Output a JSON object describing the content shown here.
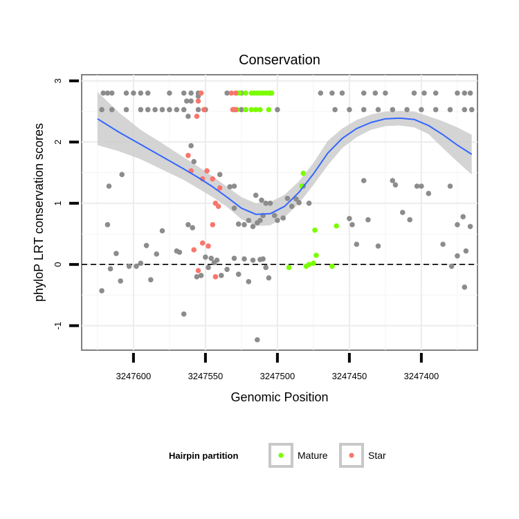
{
  "chart_data": {
    "type": "scatter",
    "title": "Conservation",
    "xlabel": "Genomic Position",
    "ylabel": "phyloP LRT conservation scores",
    "xlim": [
      3247636,
      3247361
    ],
    "ylim": [
      -1.4,
      3.1
    ],
    "x_reversed": true,
    "x_ticks": [
      3247600,
      3247550,
      3247500,
      3247450,
      3247400
    ],
    "x_tick_labels": [
      "3247600",
      "3247550",
      "3247500",
      "3247450",
      "3247400"
    ],
    "y_ticks": [
      -1,
      0,
      1,
      2,
      3
    ],
    "y_tick_labels": [
      "-1",
      "0",
      "1",
      "2",
      "3"
    ],
    "reference_line": {
      "y": 0,
      "style": "dashed"
    },
    "grid": true,
    "legend": {
      "title": "Hairpin partition",
      "position": "bottom",
      "entries": [
        {
          "label": "Mature",
          "color": "#7CFC00"
        },
        {
          "label": "Star",
          "color": "#F8766D"
        }
      ]
    },
    "colors": {
      "other": "#8c8c8c",
      "mature": "#7CFC00",
      "star": "#F8766D",
      "smooth": "#3366FF",
      "ribbon": "#cccccc"
    },
    "series": [
      {
        "name": "Other",
        "points": [
          [
            3247621,
            2.8
          ],
          [
            3247618,
            2.8
          ],
          [
            3247615,
            2.8
          ],
          [
            3247605,
            2.8
          ],
          [
            3247600,
            2.8
          ],
          [
            3247595,
            2.8
          ],
          [
            3247590,
            2.8
          ],
          [
            3247575,
            2.8
          ],
          [
            3247565,
            2.8
          ],
          [
            3247560,
            2.8
          ],
          [
            3247555,
            2.8
          ],
          [
            3247535,
            2.8
          ],
          [
            3247525,
            2.8
          ],
          [
            3247505,
            2.8
          ],
          [
            3247470,
            2.8
          ],
          [
            3247462,
            2.8
          ],
          [
            3247455,
            2.8
          ],
          [
            3247440,
            2.8
          ],
          [
            3247432,
            2.8
          ],
          [
            3247425,
            2.8
          ],
          [
            3247405,
            2.8
          ],
          [
            3247398,
            2.8
          ],
          [
            3247390,
            2.8
          ],
          [
            3247375,
            2.8
          ],
          [
            3247370,
            2.8
          ],
          [
            3247366,
            2.8
          ],
          [
            3247622,
            2.53
          ],
          [
            3247615,
            2.53
          ],
          [
            3247605,
            2.53
          ],
          [
            3247595,
            2.53
          ],
          [
            3247590,
            2.53
          ],
          [
            3247585,
            2.53
          ],
          [
            3247580,
            2.53
          ],
          [
            3247575,
            2.53
          ],
          [
            3247570,
            2.53
          ],
          [
            3247565,
            2.53
          ],
          [
            3247555,
            2.53
          ],
          [
            3247550,
            2.53
          ],
          [
            3247530,
            2.53
          ],
          [
            3247525,
            2.53
          ],
          [
            3247500,
            2.53
          ],
          [
            3247460,
            2.53
          ],
          [
            3247450,
            2.53
          ],
          [
            3247440,
            2.53
          ],
          [
            3247430,
            2.53
          ],
          [
            3247420,
            2.53
          ],
          [
            3247410,
            2.53
          ],
          [
            3247400,
            2.53
          ],
          [
            3247390,
            2.53
          ],
          [
            3247380,
            2.53
          ],
          [
            3247370,
            2.53
          ],
          [
            3247365,
            2.53
          ],
          [
            3247563,
            2.67
          ],
          [
            3247560,
            2.67
          ],
          [
            3247562,
            2.42
          ],
          [
            3247555,
            2.75
          ],
          [
            3247560,
            1.94
          ],
          [
            3247558,
            1.68
          ],
          [
            3247540,
            1.47
          ],
          [
            3247617,
            1.28
          ],
          [
            3247608,
            1.47
          ],
          [
            3247530,
            1.28
          ],
          [
            3247533,
            1.27
          ],
          [
            3247530,
            0.92
          ],
          [
            3247527,
            0.66
          ],
          [
            3247523,
            0.65
          ],
          [
            3247520,
            0.72
          ],
          [
            3247517,
            0.62
          ],
          [
            3247514,
            0.68
          ],
          [
            3247512,
            0.72
          ],
          [
            3247510,
            0.8
          ],
          [
            3247515,
            1.13
          ],
          [
            3247511,
            1.05
          ],
          [
            3247508,
            1.0
          ],
          [
            3247505,
            1.0
          ],
          [
            3247502,
            0.8
          ],
          [
            3247500,
            0.72
          ],
          [
            3247496,
            0.76
          ],
          [
            3247493,
            1.08
          ],
          [
            3247490,
            0.95
          ],
          [
            3247487,
            1.07
          ],
          [
            3247485,
            1.01
          ],
          [
            3247482,
            1.28
          ],
          [
            3247478,
            1.0
          ],
          [
            3247450,
            0.75
          ],
          [
            3247448,
            0.65
          ],
          [
            3247445,
            0.33
          ],
          [
            3247440,
            1.37
          ],
          [
            3247437,
            0.73
          ],
          [
            3247430,
            0.3
          ],
          [
            3247420,
            1.37
          ],
          [
            3247418,
            1.3
          ],
          [
            3247413,
            0.85
          ],
          [
            3247403,
            1.28
          ],
          [
            3247400,
            1.28
          ],
          [
            3247395,
            1.16
          ],
          [
            3247408,
            0.73
          ],
          [
            3247385,
            0.33
          ],
          [
            3247380,
            1.28
          ],
          [
            3247375,
            0.65
          ],
          [
            3247371,
            0.78
          ],
          [
            3247369,
            0.22
          ],
          [
            3247366,
            0.62
          ],
          [
            3247622,
            -0.43
          ],
          [
            3247618,
            0.65
          ],
          [
            3247616,
            -0.07
          ],
          [
            3247612,
            0.18
          ],
          [
            3247609,
            -0.27
          ],
          [
            3247603,
            -0.03
          ],
          [
            3247598,
            -0.03
          ],
          [
            3247595,
            0.02
          ],
          [
            3247591,
            0.31
          ],
          [
            3247588,
            -0.25
          ],
          [
            3247584,
            0.17
          ],
          [
            3247580,
            0.55
          ],
          [
            3247570,
            0.22
          ],
          [
            3247568,
            0.2
          ],
          [
            3247565,
            -0.81
          ],
          [
            3247562,
            0.65
          ],
          [
            3247559,
            0.6
          ],
          [
            3247556,
            -0.2
          ],
          [
            3247553,
            -0.18
          ],
          [
            3247550,
            0.12
          ],
          [
            3247548,
            -0.05
          ],
          [
            3247546,
            0.1
          ],
          [
            3247544,
            0.03
          ],
          [
            3247542,
            0.07
          ],
          [
            3247539,
            -0.18
          ],
          [
            3247535,
            -0.08
          ],
          [
            3247530,
            0.1
          ],
          [
            3247527,
            -0.16
          ],
          [
            3247523,
            0.09
          ],
          [
            3247520,
            -0.28
          ],
          [
            3247517,
            0.07
          ],
          [
            3247514,
            -1.23
          ],
          [
            3247512,
            0.08
          ],
          [
            3247510,
            0.09
          ],
          [
            3247508,
            -0.05
          ],
          [
            3247506,
            -0.22
          ],
          [
            3247379,
            -0.03
          ],
          [
            3247375,
            0.14
          ],
          [
            3247370,
            -0.37
          ]
        ]
      },
      {
        "name": "Mature",
        "points": [
          [
            3247528,
            2.8
          ],
          [
            3247526,
            2.8
          ],
          [
            3247522,
            2.8
          ],
          [
            3247518,
            2.8
          ],
          [
            3247516,
            2.8
          ],
          [
            3247514,
            2.8
          ],
          [
            3247512,
            2.8
          ],
          [
            3247510,
            2.8
          ],
          [
            3247508,
            2.8
          ],
          [
            3247506,
            2.8
          ],
          [
            3247504,
            2.8
          ],
          [
            3247528,
            2.53
          ],
          [
            3247522,
            2.53
          ],
          [
            3247518,
            2.53
          ],
          [
            3247515,
            2.53
          ],
          [
            3247512,
            2.53
          ],
          [
            3247506,
            2.53
          ],
          [
            3247482,
            1.49
          ],
          [
            3247483,
            1.28
          ],
          [
            3247474,
            0.56
          ],
          [
            3247459,
            0.63
          ],
          [
            3247473,
            0.15
          ],
          [
            3247475,
            0.02
          ],
          [
            3247478,
            0.0
          ],
          [
            3247480,
            -0.03
          ],
          [
            3247462,
            -0.03
          ],
          [
            3247492,
            -0.05
          ]
        ]
      },
      {
        "name": "Star",
        "points": [
          [
            3247553,
            2.8
          ],
          [
            3247532,
            2.8
          ],
          [
            3247529,
            2.8
          ],
          [
            3247555,
            2.67
          ],
          [
            3247556,
            2.42
          ],
          [
            3247551,
            2.53
          ],
          [
            3247531,
            2.53
          ],
          [
            3247529,
            2.53
          ],
          [
            3247562,
            1.78
          ],
          [
            3247560,
            1.53
          ],
          [
            3247549,
            1.53
          ],
          [
            3247552,
            1.4
          ],
          [
            3247545,
            1.4
          ],
          [
            3247540,
            1.25
          ],
          [
            3247543,
            1.0
          ],
          [
            3247541,
            0.95
          ],
          [
            3247545,
            0.65
          ],
          [
            3247552,
            0.35
          ],
          [
            3247548,
            0.3
          ],
          [
            3247558,
            0.24
          ],
          [
            3247555,
            -0.1
          ],
          [
            3247543,
            -0.2
          ]
        ]
      }
    ],
    "smooth_line": {
      "x": [
        3247625,
        3247610,
        3247595,
        3247580,
        3247565,
        3247555,
        3247545,
        3247535,
        3247525,
        3247515,
        3247505,
        3247495,
        3247485,
        3247475,
        3247465,
        3247455,
        3247445,
        3247435,
        3247425,
        3247415,
        3247405,
        3247395,
        3247385,
        3247375,
        3247365
      ],
      "y": [
        2.38,
        2.16,
        1.96,
        1.76,
        1.56,
        1.42,
        1.27,
        1.1,
        0.92,
        0.82,
        0.83,
        0.95,
        1.18,
        1.48,
        1.82,
        2.06,
        2.22,
        2.32,
        2.38,
        2.39,
        2.37,
        2.27,
        2.12,
        1.95,
        1.8
      ],
      "lower": [
        1.95,
        1.85,
        1.72,
        1.55,
        1.38,
        1.24,
        1.1,
        0.94,
        0.74,
        0.63,
        0.64,
        0.77,
        1.0,
        1.3,
        1.62,
        1.9,
        2.08,
        2.2,
        2.26,
        2.27,
        2.24,
        2.13,
        1.9,
        1.68,
        1.47
      ],
      "upper": [
        2.82,
        2.48,
        2.2,
        1.98,
        1.75,
        1.6,
        1.44,
        1.27,
        1.1,
        1.0,
        1.02,
        1.14,
        1.36,
        1.66,
        2.02,
        2.22,
        2.36,
        2.45,
        2.5,
        2.51,
        2.5,
        2.42,
        2.34,
        2.24,
        2.12
      ]
    }
  }
}
